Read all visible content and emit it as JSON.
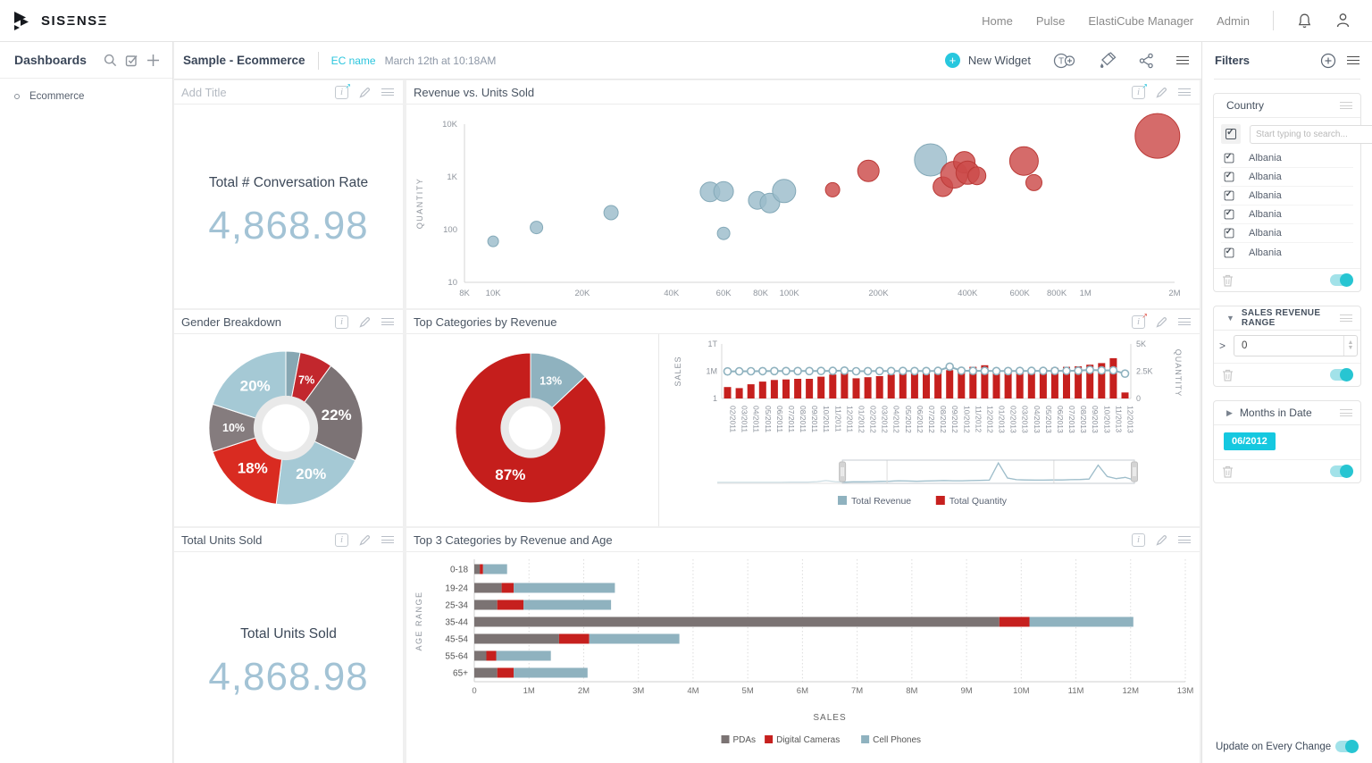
{
  "navbar": {
    "logo": "SISΞNSΞ",
    "links": [
      "Home",
      "Pulse",
      "ElastiCube Manager",
      "Admin"
    ]
  },
  "sidebar": {
    "title": "Dashboards",
    "items": [
      "Ecommerce"
    ]
  },
  "toolbar": {
    "title": "Sample - Ecommerce",
    "ec_name": "EC name",
    "timestamp": "March 12th at 10:18AM",
    "new_widget": "New Widget"
  },
  "widgets": {
    "kpi1": {
      "header": "Add Title",
      "label": "Total # Conversation Rate",
      "value": "4,868.98"
    },
    "scatter_title": "Revenue vs. Units Sold",
    "gender_title": "Gender Breakdown",
    "topcat_title": "Top Categories by Revenue",
    "kpi2": {
      "header": "Total Units Sold",
      "label": "Total Units Sold",
      "value": "4,868.98"
    },
    "age_title": "Top 3 Categories by Revenue and Age"
  },
  "filters": {
    "title": "Filters",
    "country": {
      "title": "Country",
      "search_placeholder": "Start typing to search...",
      "items": [
        "Albania",
        "Albania",
        "Albania",
        "Albania",
        "Albania",
        "Albania"
      ]
    },
    "sales_range": {
      "title": "SALES REVENUE RANGE",
      "operator": ">",
      "value": "0"
    },
    "months": {
      "title": "Months in Date",
      "tag": "06/2012"
    },
    "update_label": "Update on Every Change"
  },
  "colors": {
    "accent_cyan": "#1fc6dc",
    "red": "#c6201e",
    "steel_blue": "#8fb2bf",
    "light_blue": "#a5c9d5",
    "gray_series": "#7b7373",
    "kpi_value": "#a3c3d5"
  },
  "chart_data": [
    {
      "id": "scatter",
      "type": "scatter",
      "title": "Revenue vs. Units Sold",
      "xlabel": "",
      "ylabel": "QUANTITY",
      "x_scale": "log",
      "y_scale": "log",
      "xlim": [
        8000,
        2000000
      ],
      "ylim": [
        10,
        10000
      ],
      "x_ticks": [
        {
          "v": 8000,
          "t": "8K"
        },
        {
          "v": 10000,
          "t": "10K"
        },
        {
          "v": 20000,
          "t": "20K"
        },
        {
          "v": 40000,
          "t": "40K"
        },
        {
          "v": 60000,
          "t": "60K"
        },
        {
          "v": 80000,
          "t": "80K"
        },
        {
          "v": 100000,
          "t": "100K"
        },
        {
          "v": 200000,
          "t": "200K"
        },
        {
          "v": 400000,
          "t": "400K"
        },
        {
          "v": 600000,
          "t": "600K"
        },
        {
          "v": 800000,
          "t": "800K"
        },
        {
          "v": 1000000,
          "t": "1M"
        },
        {
          "v": 2000000,
          "t": "2M"
        }
      ],
      "y_ticks": [
        {
          "v": 10,
          "t": "10"
        },
        {
          "v": 100,
          "t": "100"
        },
        {
          "v": 1000,
          "t": "1K"
        },
        {
          "v": 10000,
          "t": "10K"
        }
      ],
      "series": [
        {
          "name": "blue",
          "color": "#9bbcca",
          "stroke": "#84a9b8",
          "points": [
            [
              10000,
              60,
              6
            ],
            [
              14000,
              110,
              7
            ],
            [
              25000,
              210,
              8
            ],
            [
              54000,
              520,
              11
            ],
            [
              60000,
              530,
              11
            ],
            [
              60000,
              85,
              7
            ],
            [
              78000,
              360,
              10
            ],
            [
              86000,
              320,
              11
            ],
            [
              96000,
              540,
              13
            ],
            [
              300000,
              2100,
              18
            ]
          ]
        },
        {
          "name": "red",
          "color": "#cc4b49",
          "stroke": "#bb3a37",
          "points": [
            [
              140000,
              570,
              8
            ],
            [
              185000,
              1300,
              12
            ],
            [
              330000,
              650,
              11
            ],
            [
              360000,
              1100,
              15
            ],
            [
              390000,
              1900,
              12
            ],
            [
              400000,
              1200,
              13
            ],
            [
              430000,
              1050,
              10
            ],
            [
              620000,
              2000,
              16
            ],
            [
              670000,
              780,
              9
            ],
            [
              1750000,
              6000,
              25
            ]
          ]
        }
      ]
    },
    {
      "id": "gender",
      "type": "pie",
      "title": "Gender Breakdown",
      "hole": 0.42,
      "slices": [
        {
          "label": "",
          "value": 3,
          "color": "#87a7b3"
        },
        {
          "label": "7%",
          "value": 7,
          "color": "#c2272d"
        },
        {
          "label": "22%",
          "value": 22,
          "color": "#7c7375"
        },
        {
          "label": "20%",
          "value": 20,
          "color": "#a5c9d5"
        },
        {
          "label": "18%",
          "value": 18,
          "color": "#d92b21"
        },
        {
          "label": "10%",
          "value": 10,
          "color": "#857c7e"
        },
        {
          "label": "20%",
          "value": 20,
          "color": "#a5c9d5"
        }
      ]
    },
    {
      "id": "topcat",
      "type": "pie",
      "title": "Top Categories by Revenue",
      "hole": 0.4,
      "slices": [
        {
          "label": "13%",
          "value": 13,
          "color": "#8fb2bf"
        },
        {
          "label": "87%",
          "value": 87,
          "color": "#c51e1c"
        }
      ]
    },
    {
      "id": "combo",
      "type": "combo",
      "categories": [
        "02/2011",
        "03/2011",
        "04/2011",
        "05/2011",
        "06/2011",
        "07/2011",
        "08/2011",
        "09/2011",
        "10/2011",
        "11/2011",
        "12/2011",
        "01/2012",
        "02/2012",
        "03/2012",
        "04/2012",
        "05/2012",
        "06/2012",
        "07/2012",
        "08/2012",
        "09/2012",
        "10/2012",
        "11/2012",
        "12/2012",
        "01/2013",
        "02/2013",
        "03/2013",
        "04/2013",
        "05/2013",
        "06/2013",
        "07/2013",
        "08/2013",
        "09/2013",
        "10/2013",
        "11/2013",
        "12/2013"
      ],
      "series": [
        {
          "name": "Total Revenue",
          "chart": "line",
          "axis": "left",
          "color": "#8fb2bf",
          "values": [
            900000,
            950000,
            1000000,
            1050000,
            1100000,
            1100000,
            1100000,
            1100000,
            1150000,
            1200000,
            1400000,
            1000000,
            1050000,
            1100000,
            1100000,
            1150000,
            1100000,
            1100000,
            1200000,
            10000000,
            1300000,
            1200000,
            1200000,
            1100000,
            1100000,
            1150000,
            1200000,
            1200000,
            1200000,
            1250000,
            1300000,
            2000000,
            1500000,
            1600000,
            300000
          ]
        },
        {
          "name": "Total Quantity",
          "chart": "bar",
          "axis": "right",
          "color": "#c6201e",
          "values": [
            1050,
            950,
            1300,
            1550,
            1700,
            1750,
            1800,
            1800,
            2000,
            2200,
            2450,
            1850,
            1950,
            2050,
            2200,
            2350,
            2300,
            2300,
            2500,
            2600,
            2700,
            2900,
            3050,
            2500,
            2500,
            2550,
            2600,
            2750,
            2800,
            2900,
            2950,
            3100,
            3250,
            3700,
            550
          ]
        }
      ],
      "left_axis": {
        "title": "SALES",
        "scale": "log",
        "min": 1,
        "max": 1000000000000,
        "ticks": [
          {
            "v": 1000000000000,
            "t": "1T"
          },
          {
            "v": 1000000,
            "t": "1M"
          },
          {
            "v": 1,
            "t": "1"
          }
        ]
      },
      "right_axis": {
        "title": "QUANTITY",
        "min": 0,
        "max": 5000,
        "ticks": [
          {
            "v": 5000,
            "t": "5K"
          },
          {
            "v": 2500,
            "t": "2.5K"
          },
          {
            "v": 0,
            "t": "0"
          }
        ]
      },
      "navigator": {
        "values": [
          0.05,
          0.05,
          0.05,
          0.05,
          0.05,
          0.05,
          0.05,
          0.05,
          0.06,
          0.06,
          0.06,
          0.08,
          0.13,
          0.08,
          0.06,
          0.07,
          0.07,
          0.08,
          0.09,
          0.1,
          0.12,
          0.11,
          0.1,
          0.11,
          0.12,
          0.13,
          0.12,
          0.12,
          0.13,
          0.14,
          0.15,
          0.95,
          0.25,
          0.17,
          0.16,
          0.15,
          0.15,
          0.16,
          0.16,
          0.17,
          0.18,
          0.2,
          0.85,
          0.32,
          0.22,
          0.28,
          0.15
        ],
        "selection": [
          0.3,
          1.0
        ],
        "dividers": [
          0.407,
          0.807
        ]
      }
    },
    {
      "id": "age",
      "type": "bar",
      "orientation": "horizontal",
      "stacked": true,
      "title": "Top 3 Categories by Revenue and Age",
      "categories": [
        "0-18",
        "19-24",
        "25-34",
        "35-44",
        "45-54",
        "55-64",
        "65+"
      ],
      "series": [
        {
          "name": "PDAs",
          "color": "#7b7373",
          "values": [
            100000,
            500000,
            420000,
            9600000,
            1550000,
            220000,
            420000
          ]
        },
        {
          "name": "Digital Cameras",
          "color": "#c6201e",
          "values": [
            60000,
            220000,
            480000,
            550000,
            550000,
            180000,
            300000
          ]
        },
        {
          "name": "Cell Phones",
          "color": "#8fb2bf",
          "values": [
            440000,
            1850000,
            1600000,
            1900000,
            1650000,
            1000000,
            1350000
          ]
        }
      ],
      "xlabel": "SALES",
      "ylabel": "AGE RANGE",
      "xlim": [
        0,
        13000000
      ],
      "x_ticks": [
        "0",
        "1M",
        "2M",
        "3M",
        "4M",
        "5M",
        "6M",
        "7M",
        "8M",
        "9M",
        "10M",
        "11M",
        "12M",
        "13M"
      ]
    }
  ]
}
